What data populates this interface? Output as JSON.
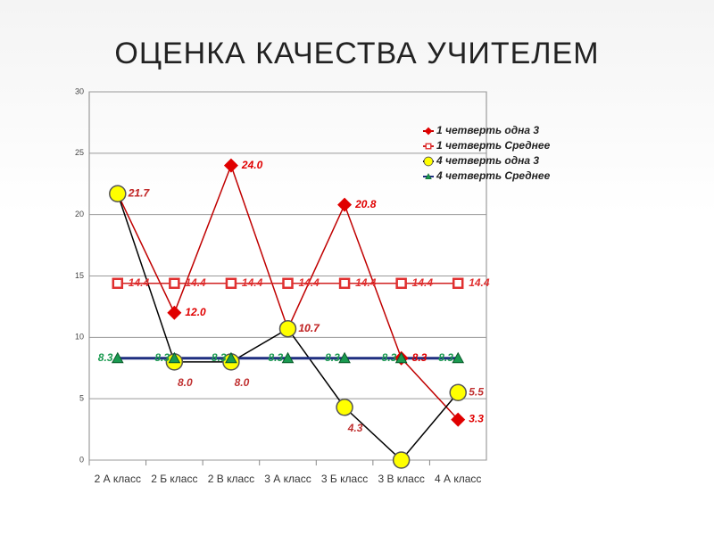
{
  "chart_data": {
    "type": "line",
    "title": "ОЦЕНКА КАЧЕСТВА УЧИТЕЛЕМ",
    "categories": [
      "2 А класс",
      "2 Б класс",
      "2 В класс",
      "3 А класс",
      "3 Б класс",
      "3 В класс",
      "4 А класс"
    ],
    "ylim": [
      0,
      30
    ],
    "yticks": [
      0,
      5,
      10,
      15,
      20,
      25,
      30
    ],
    "grid": true,
    "legend": "top-right",
    "series": [
      {
        "name": "1 четверть одна 3",
        "color": "#e00000",
        "line_color": "#c00000",
        "marker": "diamond",
        "values": [
          21.7,
          12.0,
          24.0,
          10.7,
          20.8,
          8.3,
          3.3
        ],
        "value_labels": [
          "21.7",
          "12.0",
          "24.0",
          "10.7",
          "20.8",
          "8.3",
          "3.3"
        ]
      },
      {
        "name": "1 четверть Среднее",
        "color": "#e03030",
        "line_color": "#d02020",
        "marker": "square",
        "values": [
          14.4,
          14.4,
          14.4,
          14.4,
          14.4,
          14.4,
          14.4
        ]
      },
      {
        "name": "4 четверть одна 3",
        "color": "#ffff00",
        "line_color": "#000000",
        "marker": "circle",
        "values": [
          21.7,
          8.0,
          8.0,
          10.7,
          4.3,
          0.0,
          5.5
        ],
        "value_labels": [
          "21.7",
          "8.0",
          "8.0",
          "10.7",
          "4.3",
          null,
          "5.5"
        ]
      },
      {
        "name": "4 четверть Среднее",
        "color": "#1a9a50",
        "line_color": "#1f2f80",
        "marker": "triangle",
        "values": [
          8.3,
          8.3,
          8.3,
          8.3,
          8.3,
          8.3,
          8.3
        ]
      }
    ]
  }
}
